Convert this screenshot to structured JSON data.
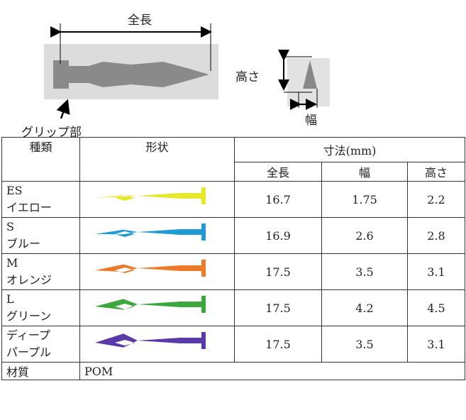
{
  "diagram": {
    "length_label": "全長",
    "height_label": "高さ",
    "width_label": "幅",
    "grip_label": "グリップ部"
  },
  "table": {
    "header": {
      "type": "種類",
      "shape": "形状",
      "dimensions": "寸法(mm)",
      "length": "全長",
      "width": "幅",
      "height": "高さ"
    },
    "rows": [
      {
        "name_lines": [
          "ES",
          "イエロー"
        ],
        "color": "#e6e82a",
        "length": 16.7,
        "width": 1.75,
        "height": 2.2
      },
      {
        "name_lines": [
          "S",
          "ブルー"
        ],
        "color": "#1e9ad6",
        "length": 16.9,
        "width": 2.6,
        "height": 2.8
      },
      {
        "name_lines": [
          "M",
          "オレンジ"
        ],
        "color": "#ec7a28",
        "length": 17.5,
        "width": 3.5,
        "height": 3.1
      },
      {
        "name_lines": [
          "L",
          "グリーン"
        ],
        "color": "#3aa83c",
        "length": 17.5,
        "width": 4.2,
        "height": 4.5
      },
      {
        "name_lines": [
          "ディープ",
          "パープル"
        ],
        "color": "#5a3aa8",
        "length": 17.5,
        "width": 3.5,
        "height": 3.1
      }
    ],
    "material": {
      "label": "材質",
      "value": "POM"
    }
  }
}
